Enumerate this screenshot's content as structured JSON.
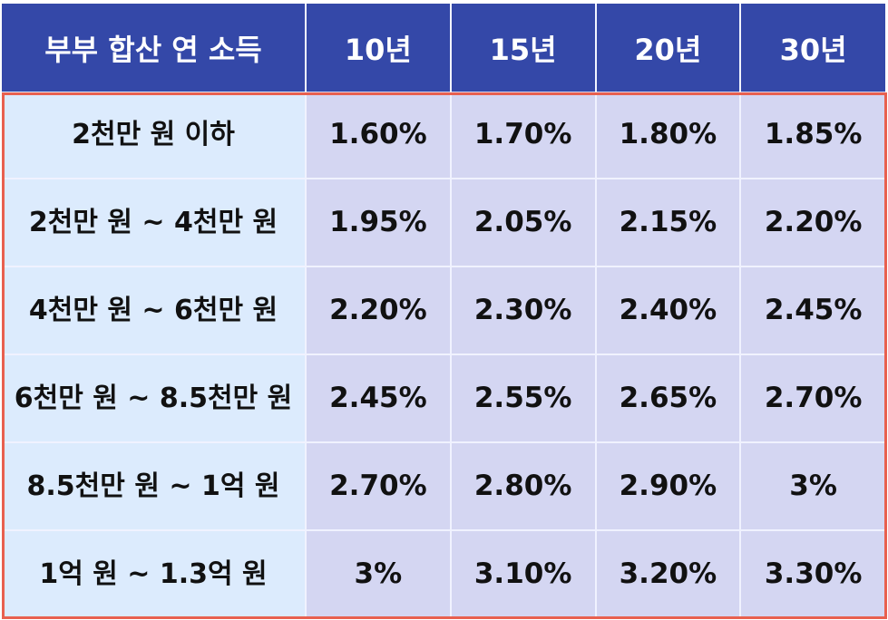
{
  "table": {
    "headers": [
      "부부 합산 연 소득",
      "10년",
      "15년",
      "20년",
      "30년"
    ],
    "rows": [
      {
        "income": "2천만 원 이하",
        "rates": [
          "1.60%",
          "1.70%",
          "1.80%",
          "1.85%"
        ]
      },
      {
        "income": "2천만 원 ~ 4천만 원",
        "rates": [
          "1.95%",
          "2.05%",
          "2.15%",
          "2.20%"
        ]
      },
      {
        "income": "4천만 원 ~ 6천만 원",
        "rates": [
          "2.20%",
          "2.30%",
          "2.40%",
          "2.45%"
        ]
      },
      {
        "income": "6천만 원 ~ 8.5천만 원",
        "rates": [
          "2.45%",
          "2.55%",
          "2.65%",
          "2.70%"
        ]
      },
      {
        "income": "8.5천만 원 ~ 1억 원",
        "rates": [
          "2.70%",
          "2.80%",
          "2.90%",
          "3%"
        ]
      },
      {
        "income": "1억 원 ~ 1.3억 원",
        "rates": [
          "3%",
          "3.10%",
          "3.20%",
          "3.30%"
        ]
      }
    ]
  },
  "colors": {
    "header_bg": "#3448a8",
    "income_col_bg": "#dcebfd",
    "rate_cell_bg": "#d4d6f2",
    "highlight_border": "#e8604f"
  }
}
